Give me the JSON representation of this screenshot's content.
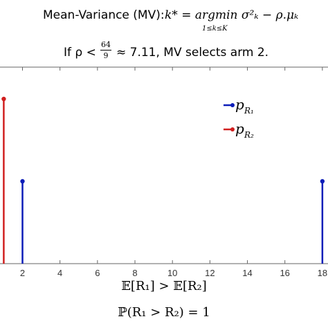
{
  "header": {
    "criterion_label": "Mean-Variance (MV):",
    "criterion_formula": "k* = argmin σ²ₖ − ρ.μₖ",
    "criterion_subscript": "1≤k≤K",
    "condition_prefix": "If ρ <",
    "condition_frac_num": "64",
    "condition_frac_den": "9",
    "condition_suffix": "≈ 7.11, MV selects arm 2."
  },
  "chart_data": {
    "type": "stem",
    "xlim": [
      0.8,
      18.3
    ],
    "ylim": [
      0,
      1
    ],
    "x_ticks": [
      2,
      4,
      6,
      8,
      10,
      12,
      14,
      16,
      18
    ],
    "grid": false,
    "legend_position": "top-right",
    "series": [
      {
        "name": "p_{R1}",
        "color": "#0b1db8",
        "points": [
          {
            "x": 2,
            "y": 0.5
          },
          {
            "x": 18,
            "y": 0.5
          }
        ]
      },
      {
        "name": "p_{R2}",
        "color": "#d11f1f",
        "points": [
          {
            "x": 1,
            "y": 1.0
          }
        ]
      }
    ]
  },
  "legend": {
    "items": [
      {
        "main": "p",
        "sub": "R₁",
        "color": "#0b1db8"
      },
      {
        "main": "p",
        "sub": "R₂",
        "color": "#d11f1f"
      }
    ]
  },
  "footer": {
    "expectation_line": "𝔼[R₁] > 𝔼[R₂]",
    "probability_line": "ℙ(R₁ > R₂) = 1"
  }
}
